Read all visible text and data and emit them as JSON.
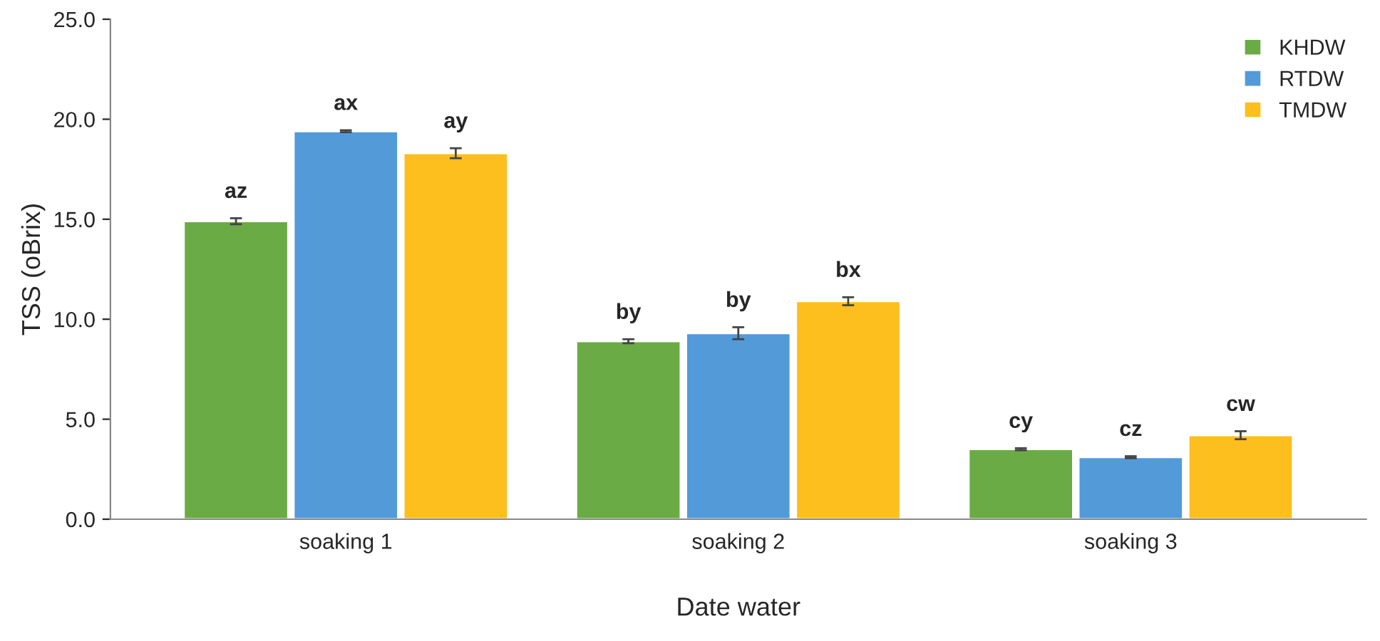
{
  "chart_data": {
    "type": "bar",
    "xlabel": "Date water",
    "ylabel": "TSS (oBrix)",
    "categories": [
      "soaking 1",
      "soaking 2",
      "soaking 3"
    ],
    "series": [
      {
        "name": "KHDW",
        "color": "#6aab45",
        "values": [
          14.9,
          8.9,
          3.5
        ],
        "errors": [
          0.15,
          0.1,
          0.05
        ],
        "value_labels": [
          "az",
          "by",
          "cy"
        ]
      },
      {
        "name": "RTDW",
        "color": "#539ad9",
        "values": [
          19.4,
          9.3,
          3.1
        ],
        "errors": [
          0.05,
          0.3,
          0.05
        ],
        "value_labels": [
          "ax",
          "by",
          "cz"
        ]
      },
      {
        "name": "TMDW",
        "color": "#fcbf1e",
        "values": [
          18.3,
          10.9,
          4.2
        ],
        "errors": [
          0.25,
          0.2,
          0.2
        ],
        "value_labels": [
          "ay",
          "bx",
          "cw"
        ]
      }
    ],
    "ylim": [
      0,
      25
    ],
    "yticks": [
      {
        "value": 0,
        "label": "0.0"
      },
      {
        "value": 5,
        "label": "5.0"
      },
      {
        "value": 10,
        "label": "10.0"
      },
      {
        "value": 15,
        "label": "15.0"
      },
      {
        "value": 20,
        "label": "20.0"
      },
      {
        "value": 25,
        "label": "25.0"
      }
    ],
    "grid": false,
    "legend": "top right"
  }
}
